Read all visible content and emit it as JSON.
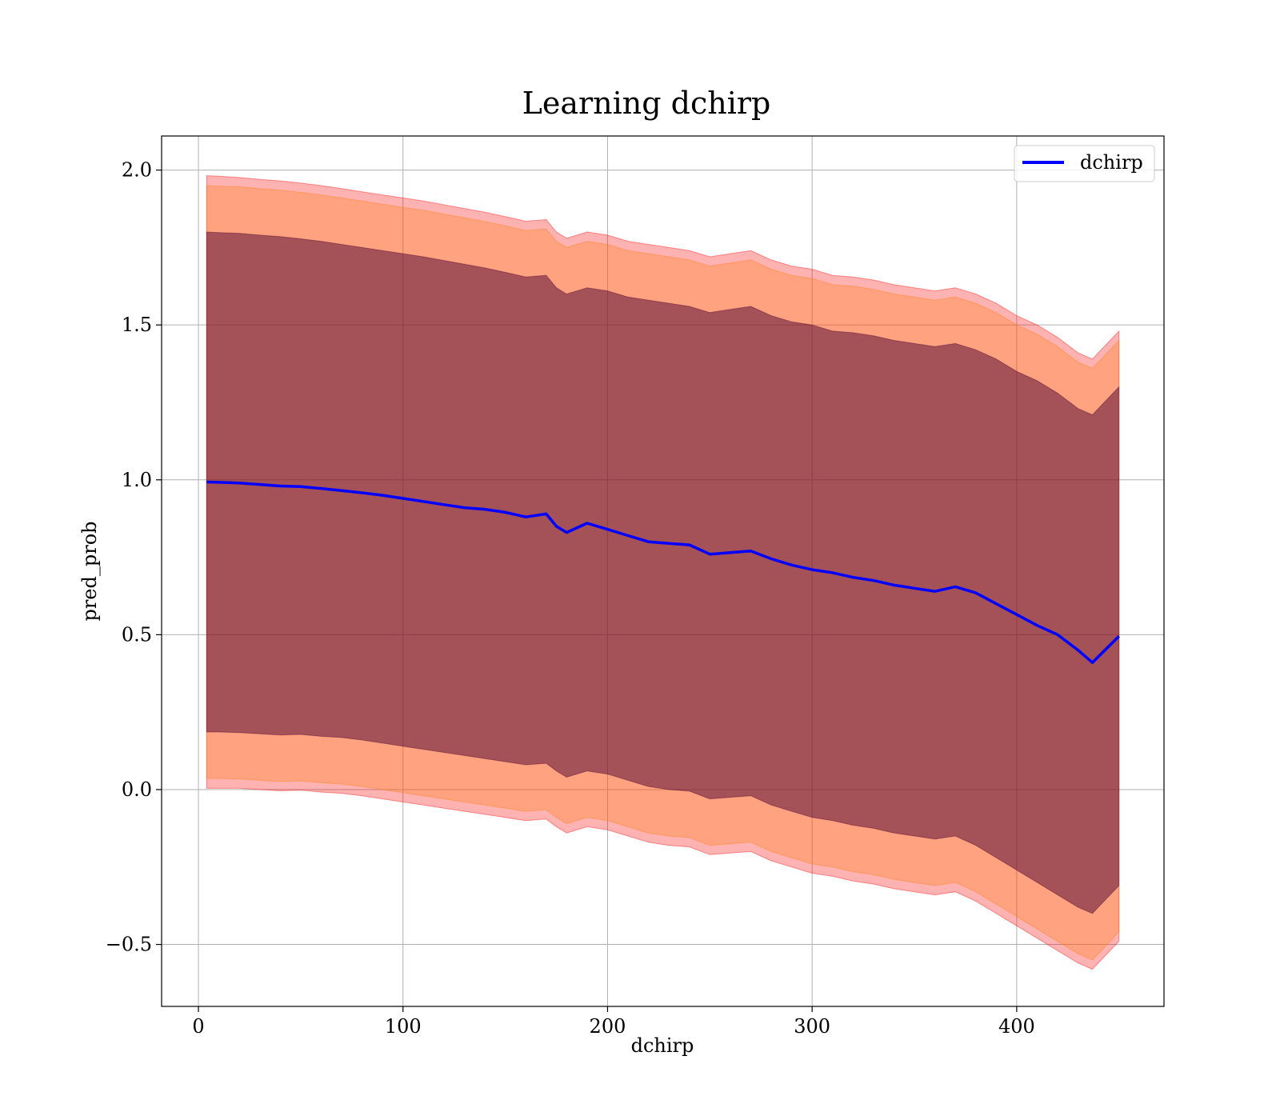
{
  "chart_data": {
    "type": "area",
    "title": "Learning dchirp",
    "xlabel": "dchirp",
    "ylabel": "pred_prob",
    "xlim": [
      -18,
      472
    ],
    "ylim": [
      -0.7,
      2.11
    ],
    "xticks": [
      0,
      100,
      200,
      300,
      400
    ],
    "xtick_labels": [
      "0",
      "100",
      "200",
      "300",
      "400"
    ],
    "yticks": [
      -0.5,
      0.0,
      0.5,
      1.0,
      1.5,
      2.0
    ],
    "ytick_labels": [
      "−0.5",
      "0.0",
      "0.5",
      "1.0",
      "1.5",
      "2.0"
    ],
    "grid": true,
    "legend_position": "top-right",
    "x": [
      4,
      10,
      20,
      30,
      40,
      50,
      60,
      70,
      80,
      90,
      100,
      110,
      120,
      130,
      140,
      150,
      160,
      170,
      175,
      180,
      190,
      200,
      210,
      220,
      230,
      240,
      250,
      260,
      270,
      280,
      290,
      300,
      310,
      320,
      330,
      340,
      350,
      360,
      370,
      380,
      390,
      400,
      410,
      420,
      430,
      437,
      450
    ],
    "series": [
      {
        "name": "dchirp",
        "color": "#0000ff",
        "values": [
          0.993,
          0.992,
          0.99,
          0.985,
          0.98,
          0.978,
          0.972,
          0.965,
          0.958,
          0.95,
          0.94,
          0.93,
          0.92,
          0.91,
          0.905,
          0.895,
          0.88,
          0.89,
          0.85,
          0.83,
          0.86,
          0.84,
          0.82,
          0.8,
          0.795,
          0.79,
          0.76,
          0.765,
          0.77,
          0.745,
          0.725,
          0.71,
          0.7,
          0.685,
          0.675,
          0.66,
          0.65,
          0.64,
          0.655,
          0.635,
          0.6,
          0.565,
          0.53,
          0.5,
          0.45,
          0.41,
          0.495
        ]
      }
    ],
    "bands": [
      {
        "fill": "#ff0000",
        "opacity": 0.3,
        "upper": [
          1.982,
          1.98,
          1.976,
          1.97,
          1.965,
          1.958,
          1.95,
          1.94,
          1.93,
          1.92,
          1.91,
          1.9,
          1.888,
          1.876,
          1.864,
          1.85,
          1.835,
          1.84,
          1.8,
          1.78,
          1.8,
          1.79,
          1.77,
          1.76,
          1.75,
          1.74,
          1.72,
          1.73,
          1.74,
          1.71,
          1.69,
          1.68,
          1.66,
          1.655,
          1.645,
          1.63,
          1.62,
          1.61,
          1.62,
          1.6,
          1.57,
          1.53,
          1.5,
          1.46,
          1.41,
          1.39,
          1.48
        ],
        "lower": [
          0.004,
          0.004,
          0.004,
          0.0,
          -0.004,
          -0.002,
          -0.008,
          -0.012,
          -0.02,
          -0.03,
          -0.04,
          -0.05,
          -0.06,
          -0.07,
          -0.08,
          -0.09,
          -0.1,
          -0.095,
          -0.12,
          -0.14,
          -0.12,
          -0.13,
          -0.15,
          -0.17,
          -0.18,
          -0.185,
          -0.21,
          -0.205,
          -0.2,
          -0.23,
          -0.25,
          -0.27,
          -0.28,
          -0.295,
          -0.305,
          -0.32,
          -0.33,
          -0.34,
          -0.33,
          -0.36,
          -0.4,
          -0.44,
          -0.48,
          -0.52,
          -0.56,
          -0.58,
          -0.49
        ]
      },
      {
        "fill": "#ff7f0e",
        "opacity": 0.3,
        "upper": [
          1.95,
          1.948,
          1.946,
          1.94,
          1.935,
          1.928,
          1.92,
          1.91,
          1.9,
          1.89,
          1.88,
          1.87,
          1.858,
          1.846,
          1.834,
          1.82,
          1.805,
          1.81,
          1.77,
          1.75,
          1.77,
          1.76,
          1.74,
          1.73,
          1.72,
          1.71,
          1.69,
          1.7,
          1.71,
          1.68,
          1.66,
          1.65,
          1.63,
          1.625,
          1.615,
          1.6,
          1.59,
          1.58,
          1.59,
          1.57,
          1.54,
          1.5,
          1.47,
          1.43,
          1.38,
          1.36,
          1.45
        ],
        "lower": [
          0.036,
          0.036,
          0.034,
          0.03,
          0.026,
          0.028,
          0.022,
          0.018,
          0.01,
          0.0,
          -0.01,
          -0.02,
          -0.03,
          -0.04,
          -0.05,
          -0.06,
          -0.07,
          -0.065,
          -0.09,
          -0.11,
          -0.09,
          -0.1,
          -0.12,
          -0.14,
          -0.15,
          -0.155,
          -0.18,
          -0.175,
          -0.17,
          -0.2,
          -0.22,
          -0.24,
          -0.25,
          -0.265,
          -0.275,
          -0.29,
          -0.3,
          -0.31,
          -0.3,
          -0.33,
          -0.37,
          -0.41,
          -0.45,
          -0.49,
          -0.53,
          -0.55,
          -0.46
        ]
      },
      {
        "fill": "#4b0030",
        "opacity": 0.5,
        "upper": [
          1.8,
          1.798,
          1.796,
          1.79,
          1.785,
          1.778,
          1.77,
          1.76,
          1.75,
          1.74,
          1.73,
          1.72,
          1.708,
          1.696,
          1.684,
          1.67,
          1.655,
          1.66,
          1.62,
          1.6,
          1.62,
          1.61,
          1.59,
          1.58,
          1.57,
          1.56,
          1.54,
          1.55,
          1.56,
          1.53,
          1.51,
          1.5,
          1.48,
          1.475,
          1.465,
          1.45,
          1.44,
          1.43,
          1.44,
          1.42,
          1.39,
          1.35,
          1.32,
          1.28,
          1.23,
          1.21,
          1.3
        ],
        "lower": [
          0.186,
          0.186,
          0.184,
          0.18,
          0.176,
          0.178,
          0.172,
          0.168,
          0.16,
          0.15,
          0.14,
          0.13,
          0.12,
          0.11,
          0.1,
          0.09,
          0.08,
          0.085,
          0.06,
          0.04,
          0.06,
          0.05,
          0.03,
          0.01,
          0.0,
          -0.005,
          -0.03,
          -0.025,
          -0.02,
          -0.05,
          -0.07,
          -0.09,
          -0.1,
          -0.115,
          -0.125,
          -0.14,
          -0.15,
          -0.16,
          -0.15,
          -0.18,
          -0.22,
          -0.26,
          -0.3,
          -0.34,
          -0.38,
          -0.4,
          -0.31
        ]
      }
    ]
  }
}
